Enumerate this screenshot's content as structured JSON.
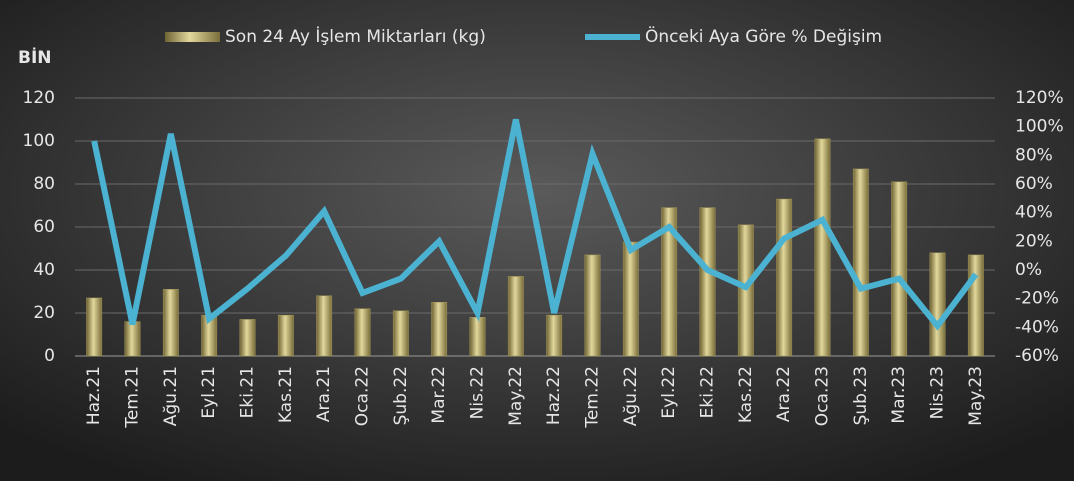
{
  "chart_data": {
    "type": "combo",
    "y_label": "BİN",
    "categories": [
      "Haz.21",
      "Tem.21",
      "Ağu.21",
      "Eyl.21",
      "Eki.21",
      "Kas.21",
      "Ara.21",
      "Oca.22",
      "Şub.22",
      "Mar.22",
      "Nis.22",
      "May.22",
      "Haz.22",
      "Tem.22",
      "Ağu.22",
      "Eyl.22",
      "Eki.22",
      "Kas.22",
      "Ara.22",
      "Oca.23",
      "Şub.23",
      "Mar.23",
      "Nis.23",
      "May.23"
    ],
    "series": [
      {
        "name": "Son 24 Ay İşlem Miktarları (kg)",
        "type": "bar",
        "color": "#a89a5a",
        "values": [
          27,
          16,
          31,
          19,
          17,
          19,
          28,
          22,
          21,
          25,
          18,
          37,
          19,
          47,
          53,
          69,
          69,
          61,
          73,
          101,
          87,
          81,
          48,
          47
        ]
      },
      {
        "name": "Önceki Aya Göre % Değişim",
        "type": "line",
        "axis": "y2",
        "color": "#4bb3d1",
        "values": [
          90,
          -38,
          95,
          -34,
          -13,
          10,
          41,
          -16,
          -6,
          20,
          -30,
          105,
          -30,
          81,
          14,
          30,
          0,
          -12,
          22,
          35,
          -13,
          -6,
          -39,
          -3
        ]
      }
    ],
    "ylim": [
      0,
      120
    ],
    "yticks": [
      0,
      20,
      40,
      60,
      80,
      100,
      120
    ],
    "y2lim": [
      -60,
      120
    ],
    "y2ticks": [
      {
        "value": -60,
        "label": "-60%"
      },
      {
        "value": -40,
        "label": "-40%"
      },
      {
        "value": -20,
        "label": "-20%"
      },
      {
        "value": 0,
        "label": "0%"
      },
      {
        "value": 20,
        "label": "20%"
      },
      {
        "value": 40,
        "label": "40%"
      },
      {
        "value": 60,
        "label": "60%"
      },
      {
        "value": 80,
        "label": "80%"
      },
      {
        "value": 100,
        "label": "100%"
      },
      {
        "value": 120,
        "label": "120%"
      }
    ],
    "grid": true,
    "legend": "top"
  }
}
